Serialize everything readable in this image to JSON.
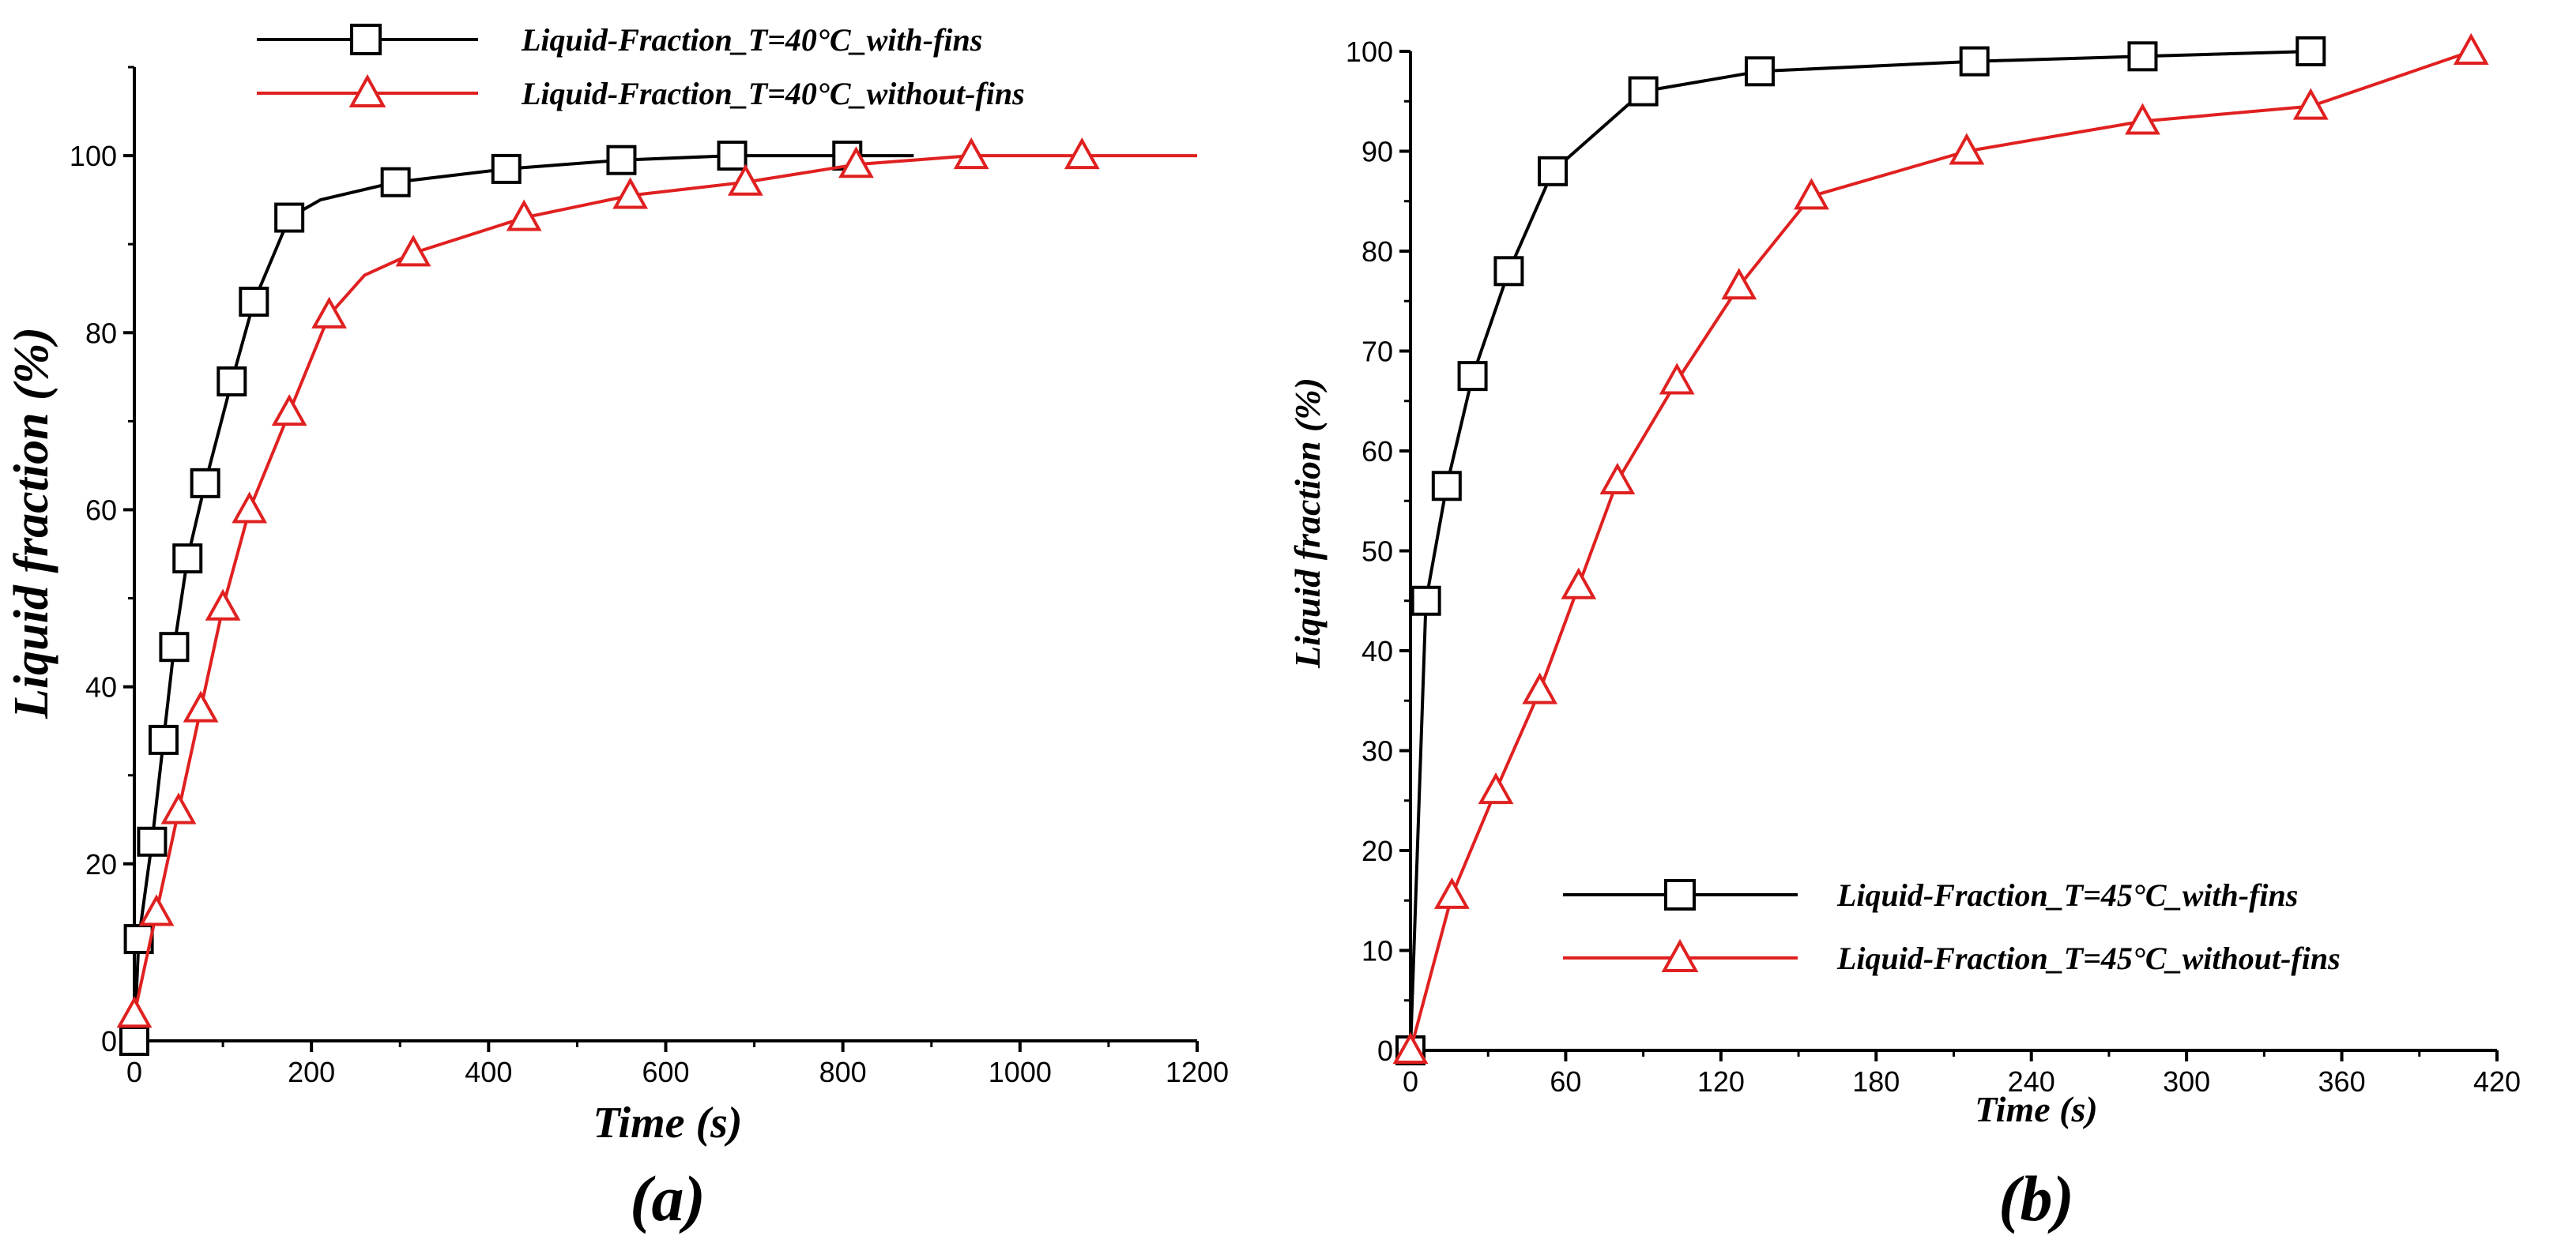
{
  "chart_data": [
    {
      "type": "line",
      "panel_label": "(a)",
      "xlabel": "Time (s)",
      "ylabel": "Liquid fraction (%)",
      "xlim": [
        0,
        1200
      ],
      "ylim": [
        0,
        110
      ],
      "xticks": [
        0,
        200,
        400,
        600,
        800,
        1000,
        1200
      ],
      "yticks": [
        0,
        20,
        40,
        60,
        80,
        100
      ],
      "grid": false,
      "legend_position": "top-right",
      "series": [
        {
          "name": "Liquid-Fraction_T=40°C_with-fins",
          "color": "#000000",
          "marker": "square",
          "x": [
            0,
            5,
            20,
            33,
            45,
            60,
            80,
            110,
            135,
            175,
            210,
            295,
            420,
            550,
            675,
            805,
            880
          ],
          "y": [
            0,
            11.5,
            22.5,
            34,
            44.5,
            54.5,
            63,
            74.5,
            83.5,
            93,
            95,
            97,
            98.5,
            99.5,
            100,
            100,
            100
          ],
          "markers_x": [
            0,
            5,
            20,
            33,
            45,
            60,
            80,
            110,
            135,
            175,
            295,
            420,
            550,
            675,
            805
          ],
          "markers_y": [
            0,
            11.5,
            22.5,
            34,
            44.5,
            54.5,
            63,
            74.5,
            83.5,
            93,
            97,
            98.5,
            99.5,
            100,
            100
          ]
        },
        {
          "name": "Liquid-Fraction_T=40°C_without-fins",
          "color": "#e02020",
          "marker": "triangle",
          "x": [
            0,
            25,
            50,
            75,
            100,
            130,
            175,
            220,
            260,
            315,
            440,
            560,
            690,
            815,
            945,
            1070,
            1200
          ],
          "y": [
            3,
            14.5,
            26,
            37.5,
            49,
            60,
            71,
            82,
            86.5,
            89,
            93,
            95.5,
            97,
            99,
            100,
            100,
            100
          ],
          "markers_x": [
            0,
            25,
            50,
            75,
            100,
            130,
            175,
            220,
            315,
            440,
            560,
            690,
            815,
            945,
            1070
          ],
          "markers_y": [
            3,
            14.5,
            26,
            37.5,
            49,
            60,
            71,
            82,
            89,
            93,
            95.5,
            97,
            99,
            100,
            100
          ]
        }
      ]
    },
    {
      "type": "line",
      "panel_label": "(b)",
      "xlabel": "Time (s)",
      "ylabel": "Liquid fraction (%)",
      "xlim": [
        0,
        420
      ],
      "ylim": [
        0,
        100
      ],
      "xticks": [
        0,
        60,
        120,
        180,
        240,
        300,
        360,
        420
      ],
      "yticks": [
        0,
        10,
        20,
        30,
        40,
        50,
        60,
        70,
        80,
        90,
        100
      ],
      "grid": false,
      "legend_position": "bottom-right",
      "series": [
        {
          "name": "Liquid-Fraction_T=45°C_with-fins",
          "color": "#000000",
          "marker": "square",
          "x": [
            0,
            6,
            14,
            24,
            38,
            55,
            90,
            135,
            218,
            283,
            348
          ],
          "y": [
            0,
            45,
            56.5,
            67.5,
            78,
            88,
            96,
            98,
            99,
            99.5,
            100
          ],
          "markers_x": [
            0,
            6,
            14,
            24,
            38,
            55,
            90,
            135,
            218,
            283,
            348
          ],
          "markers_y": [
            0,
            45,
            56.5,
            67.5,
            78,
            88,
            96,
            98,
            99,
            99.5,
            100
          ]
        },
        {
          "name": "Liquid-Fraction_T=45°C_without-fins",
          "color": "#e02020",
          "marker": "triangle",
          "x": [
            0,
            16,
            33,
            50,
            65,
            80,
            103,
            127,
            155,
            215,
            283,
            348,
            410
          ],
          "y": [
            0,
            15.5,
            26,
            36,
            46.5,
            57,
            67,
            76.5,
            85.5,
            90,
            93,
            94.5,
            100
          ],
          "markers_x": [
            0,
            16,
            33,
            50,
            65,
            80,
            103,
            127,
            155,
            215,
            283,
            348,
            410
          ],
          "markers_y": [
            0,
            15.5,
            26,
            36,
            46.5,
            57,
            67,
            76.5,
            85.5,
            90,
            93,
            94.5,
            100
          ]
        }
      ]
    }
  ]
}
